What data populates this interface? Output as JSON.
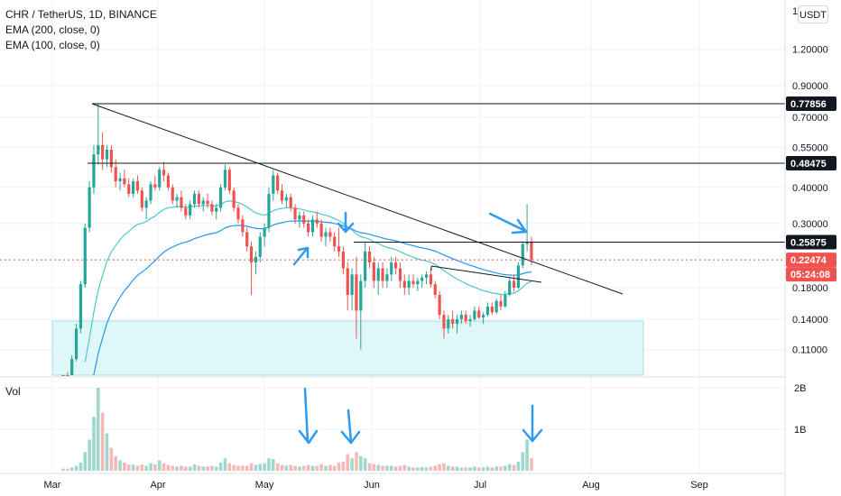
{
  "legend": {
    "symbol": "CHR / TetherUS, 1D, BINANCE",
    "ema200": "EMA (200, close, 0)",
    "ema100": "EMA (100, close, 0)"
  },
  "currency_button": "USDT",
  "volume_label": "Vol",
  "price_axis": {
    "ticks": [
      "1.20000",
      "0.90000",
      "0.70000",
      "0.55000",
      "0.40000",
      "0.30000",
      "0.18000",
      "0.14000",
      "0.11000"
    ],
    "top_partial": "1"
  },
  "volume_axis": {
    "ticks": [
      "2B",
      "1B"
    ]
  },
  "time_axis": [
    "Mar",
    "Apr",
    "May",
    "Jun",
    "Jul",
    "Aug",
    "Sep"
  ],
  "price_labels": [
    {
      "text": "0.77856",
      "style": "dark"
    },
    {
      "text": "0.48475",
      "style": "dark"
    },
    {
      "text": "0.25875",
      "style": "dark"
    },
    {
      "text": "0.22474",
      "style": "red"
    },
    {
      "text": "05:24:08",
      "style": "red"
    }
  ],
  "colors": {
    "up": "#26a69a",
    "down": "#ef5350",
    "ema": "#2196f3",
    "ema_fast": "#4dc9c7",
    "zone": "#e0f7f8",
    "arrow": "#2e9bf0",
    "grid": "#eef0f3",
    "line": "#131722"
  },
  "chart_data": {
    "type": "candlestick",
    "note_series": [
      "price",
      "ema100",
      "ema200",
      "volume"
    ],
    "price_scale": "log",
    "horizontal_levels": [
      0.77856,
      0.48475,
      0.25875
    ],
    "current_price": 0.22474,
    "countdown": "05:24:08",
    "candles": [
      [
        0.081,
        0.09,
        0.078,
        0.088
      ],
      [
        0.088,
        0.092,
        0.084,
        0.086
      ],
      [
        0.086,
        0.105,
        0.085,
        0.102
      ],
      [
        0.102,
        0.135,
        0.1,
        0.13
      ],
      [
        0.13,
        0.19,
        0.125,
        0.185
      ],
      [
        0.185,
        0.3,
        0.18,
        0.29
      ],
      [
        0.29,
        0.42,
        0.28,
        0.4
      ],
      [
        0.4,
        0.56,
        0.38,
        0.52
      ],
      [
        0.52,
        0.78,
        0.48,
        0.56
      ],
      [
        0.56,
        0.62,
        0.46,
        0.5
      ],
      [
        0.5,
        0.56,
        0.47,
        0.54
      ],
      [
        0.54,
        0.56,
        0.45,
        0.47
      ],
      [
        0.47,
        0.5,
        0.4,
        0.42
      ],
      [
        0.42,
        0.45,
        0.39,
        0.43
      ],
      [
        0.43,
        0.46,
        0.4,
        0.41
      ],
      [
        0.41,
        0.43,
        0.37,
        0.38
      ],
      [
        0.38,
        0.43,
        0.37,
        0.42
      ],
      [
        0.42,
        0.44,
        0.38,
        0.39
      ],
      [
        0.39,
        0.4,
        0.33,
        0.34
      ],
      [
        0.34,
        0.37,
        0.31,
        0.36
      ],
      [
        0.36,
        0.42,
        0.35,
        0.41
      ],
      [
        0.41,
        0.44,
        0.39,
        0.4
      ],
      [
        0.4,
        0.47,
        0.39,
        0.46
      ],
      [
        0.46,
        0.49,
        0.42,
        0.44
      ],
      [
        0.44,
        0.45,
        0.39,
        0.4
      ],
      [
        0.4,
        0.41,
        0.35,
        0.36
      ],
      [
        0.36,
        0.38,
        0.34,
        0.37
      ],
      [
        0.37,
        0.39,
        0.33,
        0.34
      ],
      [
        0.34,
        0.35,
        0.31,
        0.32
      ],
      [
        0.32,
        0.36,
        0.31,
        0.35
      ],
      [
        0.35,
        0.39,
        0.34,
        0.38
      ],
      [
        0.38,
        0.39,
        0.34,
        0.35
      ],
      [
        0.35,
        0.37,
        0.33,
        0.36
      ],
      [
        0.36,
        0.38,
        0.34,
        0.35
      ],
      [
        0.35,
        0.36,
        0.32,
        0.33
      ],
      [
        0.33,
        0.35,
        0.31,
        0.34
      ],
      [
        0.34,
        0.41,
        0.33,
        0.4
      ],
      [
        0.4,
        0.48,
        0.39,
        0.46
      ],
      [
        0.46,
        0.47,
        0.38,
        0.39
      ],
      [
        0.39,
        0.4,
        0.33,
        0.34
      ],
      [
        0.34,
        0.35,
        0.3,
        0.31
      ],
      [
        0.31,
        0.32,
        0.27,
        0.28
      ],
      [
        0.28,
        0.29,
        0.24,
        0.25
      ],
      [
        0.25,
        0.26,
        0.17,
        0.22
      ],
      [
        0.22,
        0.24,
        0.2,
        0.23
      ],
      [
        0.23,
        0.28,
        0.22,
        0.27
      ],
      [
        0.27,
        0.3,
        0.25,
        0.29
      ],
      [
        0.29,
        0.4,
        0.28,
        0.38
      ],
      [
        0.38,
        0.46,
        0.36,
        0.44
      ],
      [
        0.44,
        0.45,
        0.38,
        0.39
      ],
      [
        0.39,
        0.41,
        0.35,
        0.36
      ],
      [
        0.36,
        0.38,
        0.34,
        0.37
      ],
      [
        0.37,
        0.38,
        0.33,
        0.34
      ],
      [
        0.34,
        0.35,
        0.3,
        0.31
      ],
      [
        0.31,
        0.33,
        0.29,
        0.32
      ],
      [
        0.32,
        0.33,
        0.29,
        0.3
      ],
      [
        0.3,
        0.31,
        0.27,
        0.28
      ],
      [
        0.28,
        0.32,
        0.27,
        0.31
      ],
      [
        0.31,
        0.33,
        0.29,
        0.3
      ],
      [
        0.3,
        0.31,
        0.26,
        0.27
      ],
      [
        0.27,
        0.29,
        0.25,
        0.28
      ],
      [
        0.28,
        0.29,
        0.26,
        0.27
      ],
      [
        0.27,
        0.28,
        0.24,
        0.25
      ],
      [
        0.25,
        0.29,
        0.23,
        0.24
      ],
      [
        0.24,
        0.25,
        0.2,
        0.21
      ],
      [
        0.21,
        0.22,
        0.15,
        0.17
      ],
      [
        0.17,
        0.21,
        0.15,
        0.2
      ],
      [
        0.2,
        0.23,
        0.12,
        0.15
      ],
      [
        0.15,
        0.2,
        0.11,
        0.19
      ],
      [
        0.19,
        0.26,
        0.18,
        0.24
      ],
      [
        0.24,
        0.25,
        0.21,
        0.22
      ],
      [
        0.22,
        0.23,
        0.18,
        0.19
      ],
      [
        0.19,
        0.22,
        0.17,
        0.21
      ],
      [
        0.21,
        0.22,
        0.18,
        0.19
      ],
      [
        0.19,
        0.21,
        0.18,
        0.2
      ],
      [
        0.2,
        0.23,
        0.19,
        0.22
      ],
      [
        0.22,
        0.23,
        0.2,
        0.21
      ],
      [
        0.21,
        0.22,
        0.18,
        0.19
      ],
      [
        0.19,
        0.2,
        0.17,
        0.18
      ],
      [
        0.18,
        0.2,
        0.17,
        0.19
      ],
      [
        0.19,
        0.2,
        0.18,
        0.185
      ],
      [
        0.185,
        0.195,
        0.175,
        0.19
      ],
      [
        0.19,
        0.2,
        0.18,
        0.195
      ],
      [
        0.195,
        0.205,
        0.185,
        0.2
      ],
      [
        0.2,
        0.21,
        0.18,
        0.185
      ],
      [
        0.185,
        0.19,
        0.165,
        0.17
      ],
      [
        0.17,
        0.175,
        0.14,
        0.145
      ],
      [
        0.145,
        0.15,
        0.12,
        0.13
      ],
      [
        0.13,
        0.145,
        0.125,
        0.14
      ],
      [
        0.14,
        0.15,
        0.13,
        0.135
      ],
      [
        0.135,
        0.145,
        0.125,
        0.14
      ],
      [
        0.14,
        0.15,
        0.135,
        0.145
      ],
      [
        0.145,
        0.15,
        0.135,
        0.138
      ],
      [
        0.138,
        0.145,
        0.132,
        0.14
      ],
      [
        0.14,
        0.155,
        0.138,
        0.15
      ],
      [
        0.15,
        0.155,
        0.14,
        0.142
      ],
      [
        0.142,
        0.148,
        0.135,
        0.145
      ],
      [
        0.145,
        0.16,
        0.143,
        0.155
      ],
      [
        0.155,
        0.16,
        0.145,
        0.148
      ],
      [
        0.148,
        0.165,
        0.146,
        0.162
      ],
      [
        0.162,
        0.17,
        0.15,
        0.155
      ],
      [
        0.155,
        0.175,
        0.153,
        0.17
      ],
      [
        0.17,
        0.195,
        0.168,
        0.19
      ],
      [
        0.19,
        0.2,
        0.175,
        0.18
      ],
      [
        0.18,
        0.22,
        0.178,
        0.215
      ],
      [
        0.215,
        0.26,
        0.21,
        0.255
      ],
      [
        0.255,
        0.35,
        0.24,
        0.26
      ],
      [
        0.26,
        0.27,
        0.215,
        0.225
      ]
    ],
    "volume": [
      0.05,
      0.05,
      0.08,
      0.12,
      0.2,
      0.45,
      0.75,
      1.3,
      2.0,
      1.4,
      0.9,
      0.55,
      0.35,
      0.25,
      0.2,
      0.15,
      0.15,
      0.12,
      0.15,
      0.12,
      0.18,
      0.15,
      0.25,
      0.18,
      0.14,
      0.12,
      0.1,
      0.12,
      0.1,
      0.1,
      0.15,
      0.12,
      0.1,
      0.1,
      0.12,
      0.1,
      0.2,
      0.3,
      0.18,
      0.14,
      0.12,
      0.12,
      0.12,
      0.18,
      0.14,
      0.16,
      0.18,
      0.3,
      0.28,
      0.18,
      0.14,
      0.12,
      0.14,
      0.12,
      0.1,
      0.12,
      0.14,
      0.12,
      0.12,
      0.16,
      0.12,
      0.14,
      0.12,
      0.2,
      0.22,
      0.4,
      0.3,
      0.45,
      0.35,
      0.3,
      0.18,
      0.16,
      0.14,
      0.12,
      0.12,
      0.12,
      0.1,
      0.12,
      0.14,
      0.1,
      0.08,
      0.08,
      0.09,
      0.08,
      0.1,
      0.12,
      0.16,
      0.18,
      0.12,
      0.1,
      0.1,
      0.08,
      0.08,
      0.08,
      0.1,
      0.08,
      0.08,
      0.1,
      0.08,
      0.1,
      0.1,
      0.12,
      0.16,
      0.14,
      0.22,
      0.45,
      0.75,
      0.3
    ]
  }
}
